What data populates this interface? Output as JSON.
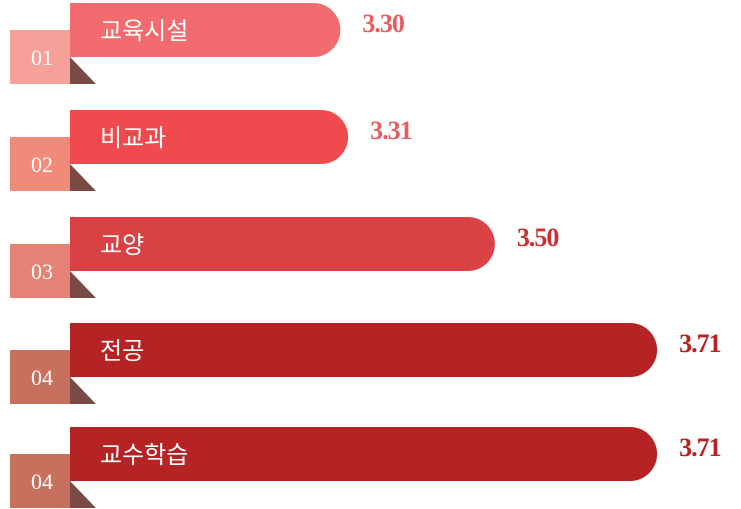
{
  "chart_data": {
    "type": "bar",
    "orientation": "horizontal",
    "categories": [
      "교육시설",
      "비교과",
      "교양",
      "전공",
      "교수학습"
    ],
    "badges": [
      "01",
      "02",
      "03",
      "04",
      "04"
    ],
    "values": [
      3.3,
      3.31,
      3.5,
      3.71,
      3.71
    ],
    "value_labels": [
      "3.30",
      "3.31",
      "3.50",
      "3.71",
      "3.71"
    ],
    "colors": [
      "#f26b6f",
      "#f04a4e",
      "#d94144",
      "#b52325",
      "#b52325"
    ],
    "badge_colors": [
      "#f5a19a",
      "#f08b7a",
      "#e38275",
      "#c8705e",
      "#c8705e"
    ],
    "label_colors": [
      "#e85d5f",
      "#e85d5f",
      "#c9302f",
      "#b52325",
      "#b52325"
    ],
    "xlim": [
      2.95,
      3.75
    ]
  }
}
